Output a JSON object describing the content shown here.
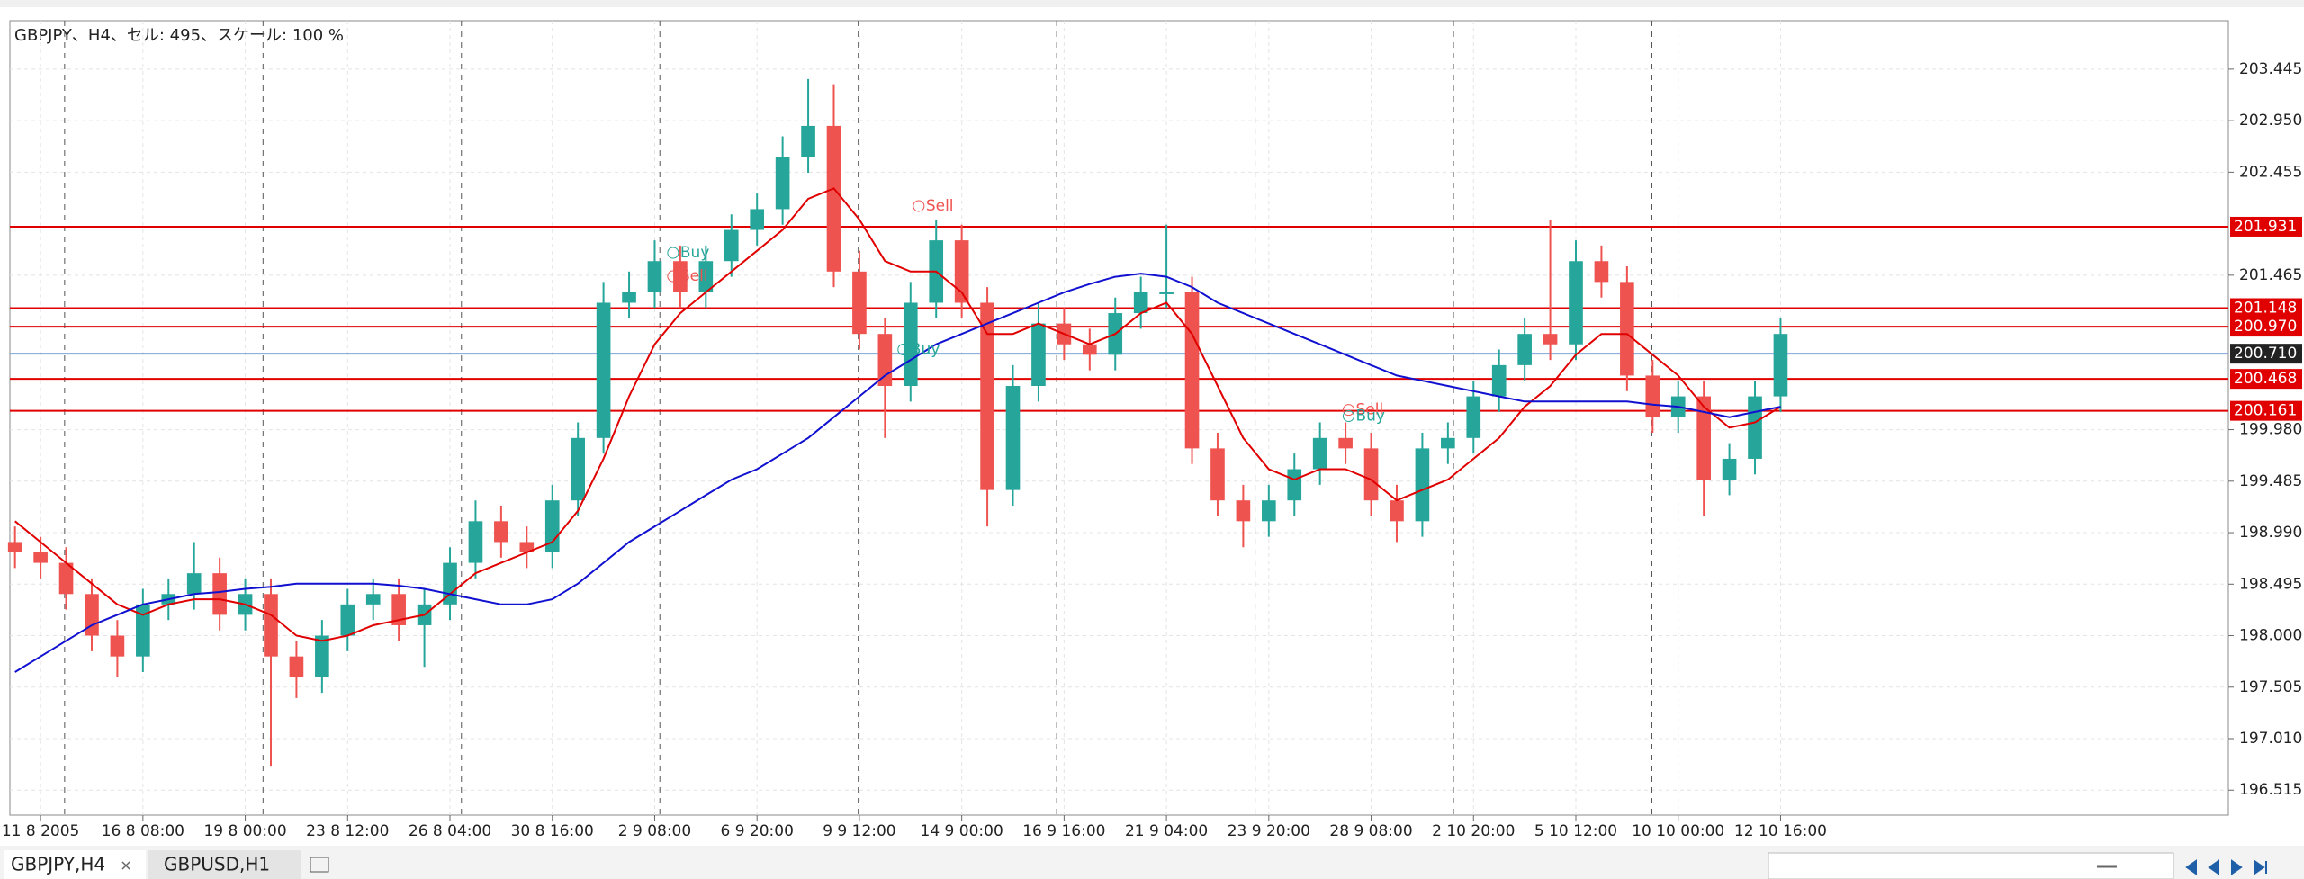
{
  "chart_data": {
    "type": "candlestick",
    "title": "GBPJPY、H4、セル: 495、スケール: 100 %",
    "xlim": [
      -0.2,
      86.5
    ],
    "ylim": [
      196.275,
      203.911
    ],
    "xticks": [
      {
        "value": 1,
        "label": "11 8 2005"
      },
      {
        "value": 5,
        "label": "16 8 08:00"
      },
      {
        "value": 9,
        "label": "19 8 00:00"
      },
      {
        "value": 13,
        "label": "23 8 12:00"
      },
      {
        "value": 17,
        "label": "26 8 04:00"
      },
      {
        "value": 21,
        "label": "30 8 16:00"
      },
      {
        "value": 25,
        "label": "2 9 08:00"
      },
      {
        "value": 29,
        "label": "6 9 20:00"
      },
      {
        "value": 33,
        "label": "9 9 12:00"
      },
      {
        "value": 37,
        "label": "14 9 00:00"
      },
      {
        "value": 41,
        "label": "16 9 16:00"
      },
      {
        "value": 45,
        "label": "21 9 04:00"
      },
      {
        "value": 49,
        "label": "23 9 20:00"
      },
      {
        "value": 53,
        "label": "28 9 08:00"
      },
      {
        "value": 57,
        "label": "2 10 20:00"
      },
      {
        "value": 61,
        "label": "5 10 12:00"
      },
      {
        "value": 65,
        "label": "10 10 00:00"
      },
      {
        "value": 69,
        "label": "12 10 16:00"
      }
    ],
    "yticks": [
      203.445,
      {
        "value": 202.95,
        "label": "202.950"
      },
      202.455,
      201.465,
      {
        "value": 199.98,
        "label": "199.980"
      },
      199.485,
      {
        "value": 198.99,
        "label": "198.990"
      },
      198.495,
      {
        "value": 198,
        "label": "198.000"
      },
      197.505,
      {
        "value": 197.01,
        "label": "197.010"
      },
      196.515
    ],
    "grid": true,
    "up_color": "#26a69a",
    "down_color": "#ef5350",
    "open": [
      198.9,
      198.8,
      198.7,
      198.4,
      198.0,
      197.8,
      198.3,
      198.4,
      198.6,
      198.2,
      198.4,
      197.8,
      197.6,
      198.0,
      198.3,
      198.4,
      198.1,
      198.3,
      198.7,
      199.1,
      198.9,
      198.8,
      199.3,
      199.9,
      201.2,
      201.3,
      201.6,
      201.3,
      201.6,
      201.9,
      202.1,
      202.6,
      202.9,
      201.5,
      200.9,
      200.4,
      201.2,
      201.8,
      201.2,
      199.4,
      200.4,
      201.0,
      200.8,
      200.7,
      201.1,
      201.3,
      201.3,
      199.8,
      199.3,
      199.1,
      199.3,
      199.6,
      199.9,
      199.8,
      199.3,
      199.1,
      199.8,
      199.9,
      200.3,
      200.6,
      200.9,
      200.8,
      201.6,
      201.4,
      200.5,
      200.1,
      200.3,
      199.5,
      199.7,
      200.3
    ],
    "high": [
      199.05,
      198.95,
      198.85,
      198.55,
      198.15,
      198.45,
      198.55,
      198.9,
      198.75,
      198.55,
      198.55,
      197.95,
      198.15,
      198.45,
      198.55,
      198.55,
      198.45,
      198.85,
      199.3,
      199.25,
      199.05,
      199.45,
      200.05,
      201.4,
      201.5,
      201.8,
      201.75,
      201.75,
      202.05,
      202.25,
      202.8,
      203.35,
      203.3,
      201.7,
      201.05,
      201.4,
      202.0,
      201.95,
      201.35,
      200.6,
      201.2,
      201.15,
      200.95,
      201.25,
      201.45,
      201.95,
      201.45,
      199.95,
      199.45,
      199.45,
      199.75,
      200.05,
      200.05,
      199.95,
      199.45,
      199.95,
      200.05,
      200.45,
      200.75,
      201.05,
      202.0,
      201.8,
      201.75,
      201.55,
      200.65,
      200.45,
      200.45,
      199.85,
      200.45,
      201.05
    ],
    "low": [
      198.65,
      198.55,
      198.25,
      197.85,
      197.6,
      197.65,
      198.15,
      198.25,
      198.05,
      198.05,
      196.75,
      197.4,
      197.45,
      197.85,
      198.15,
      197.95,
      197.7,
      198.15,
      198.55,
      198.75,
      198.65,
      198.65,
      199.15,
      199.75,
      201.05,
      201.15,
      201.15,
      201.15,
      201.45,
      201.75,
      201.95,
      202.45,
      201.35,
      200.75,
      199.9,
      200.25,
      201.05,
      201.05,
      199.05,
      199.25,
      200.25,
      200.65,
      200.55,
      200.55,
      200.95,
      201.15,
      199.65,
      199.15,
      198.85,
      198.95,
      199.15,
      199.45,
      199.65,
      199.15,
      198.9,
      198.95,
      199.65,
      199.75,
      200.15,
      200.45,
      200.65,
      200.65,
      201.25,
      200.35,
      199.95,
      199.95,
      199.15,
      199.35,
      199.55,
      200.15
    ],
    "close": [
      198.8,
      198.7,
      198.4,
      198.0,
      197.8,
      198.3,
      198.4,
      198.6,
      198.2,
      198.4,
      197.8,
      197.6,
      198.0,
      198.3,
      198.4,
      198.1,
      198.3,
      198.7,
      199.1,
      198.9,
      198.8,
      199.3,
      199.9,
      201.2,
      201.3,
      201.6,
      201.3,
      201.6,
      201.9,
      202.1,
      202.6,
      202.9,
      201.5,
      200.9,
      200.4,
      201.2,
      201.8,
      201.2,
      199.4,
      200.4,
      201.0,
      200.8,
      200.7,
      201.1,
      201.3,
      201.3,
      199.8,
      199.3,
      199.1,
      199.3,
      199.6,
      199.9,
      199.8,
      199.3,
      199.1,
      199.8,
      199.9,
      200.3,
      200.6,
      200.9,
      200.8,
      201.6,
      201.4,
      200.5,
      200.1,
      200.3,
      199.5,
      199.7,
      200.3,
      200.9
    ],
    "overlays": [
      {
        "color": "#e00000",
        "values": [
          199.1,
          198.9,
          198.7,
          198.5,
          198.3,
          198.2,
          198.3,
          198.35,
          198.35,
          198.3,
          198.2,
          198.0,
          197.95,
          198.0,
          198.1,
          198.15,
          198.2,
          198.4,
          198.6,
          198.7,
          198.8,
          198.9,
          199.2,
          199.7,
          200.3,
          200.8,
          201.1,
          201.3,
          201.5,
          201.7,
          201.9,
          202.2,
          202.3,
          202.0,
          201.6,
          201.5,
          201.5,
          201.3,
          200.9,
          200.9,
          201.0,
          200.9,
          200.8,
          200.9,
          201.1,
          201.2,
          200.9,
          200.4,
          199.9,
          199.6,
          199.5,
          199.6,
          199.6,
          199.5,
          199.3,
          199.4,
          199.5,
          199.7,
          199.9,
          200.2,
          200.4,
          200.7,
          200.9,
          200.9,
          200.7,
          200.5,
          200.2,
          200.0,
          200.05,
          200.2
        ]
      },
      {
        "color": "#1010d0",
        "values": [
          197.65,
          197.8,
          197.95,
          198.1,
          198.2,
          198.3,
          198.35,
          198.4,
          198.42,
          198.45,
          198.47,
          198.5,
          198.5,
          198.5,
          198.5,
          198.48,
          198.45,
          198.4,
          198.35,
          198.3,
          198.3,
          198.35,
          198.5,
          198.7,
          198.9,
          199.05,
          199.2,
          199.35,
          199.5,
          199.6,
          199.75,
          199.9,
          200.1,
          200.3,
          200.5,
          200.65,
          200.8,
          200.9,
          201.0,
          201.1,
          201.2,
          201.3,
          201.38,
          201.45,
          201.48,
          201.45,
          201.35,
          201.2,
          201.1,
          201.0,
          200.9,
          200.8,
          200.7,
          200.6,
          200.5,
          200.45,
          200.4,
          200.35,
          200.3,
          200.25,
          200.25,
          200.25,
          200.25,
          200.25,
          200.22,
          200.2,
          200.15,
          200.1,
          200.15,
          200.2
        ]
      }
    ],
    "levels": [
      {
        "value": 201.931,
        "color": "#e00000",
        "box": "#e00000"
      },
      {
        "value": 201.148,
        "color": "#e00000",
        "box": "#e00000"
      },
      {
        "value": 200.97,
        "label": "200.970",
        "color": "#e00000",
        "box": "#e00000"
      },
      {
        "value": 200.71,
        "label": "200.710",
        "color": "#7fa7d8",
        "box": "#222222"
      },
      {
        "value": 200.468,
        "color": "#e00000",
        "box": "#e00000"
      },
      {
        "value": 200.161,
        "color": "#e00000",
        "box": "#e00000"
      }
    ],
    "annotations": [
      {
        "text": "Buy",
        "x": 26,
        "y": 201.68,
        "color": "#26a69a"
      },
      {
        "text": "Sell",
        "x": 26,
        "y": 201.455,
        "color": "#ef5350"
      },
      {
        "text": "Sell",
        "x": 35.6,
        "y": 202.13,
        "color": "#ef5350"
      },
      {
        "text": "Buy",
        "x": 35,
        "y": 200.75,
        "color": "#26a69a"
      },
      {
        "text": "Sell",
        "x": 52.4,
        "y": 200.17,
        "color": "#ef5350"
      },
      {
        "text": "Buy",
        "x": 52.4,
        "y": 200.11,
        "color": "#26a69a"
      }
    ]
  },
  "ui": {
    "tabs": [
      "GBPJPY,H4",
      "GBPUSD,H1"
    ]
  }
}
